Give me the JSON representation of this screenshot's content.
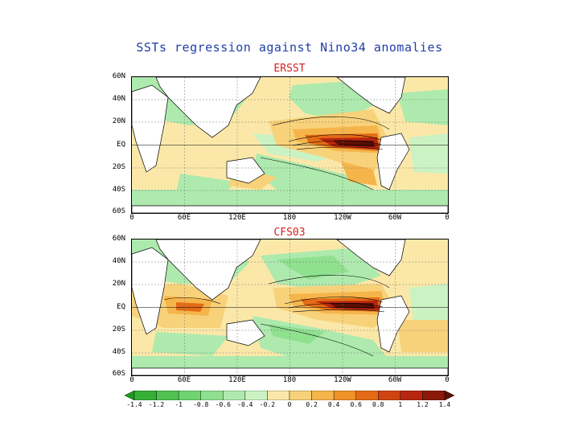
{
  "title": "SSTs regression against Nino34 anomalies",
  "panels": [
    {
      "title": "ERSST"
    },
    {
      "title": "CFS03"
    }
  ],
  "lat_labels": [
    "60N",
    "40N",
    "20N",
    "EQ",
    "20S",
    "40S",
    "60S"
  ],
  "lon_labels": [
    "0",
    "60E",
    "120E",
    "180",
    "120W",
    "60W",
    "0"
  ],
  "colorbar": {
    "labels": [
      "-1.4",
      "-1.2",
      "-1",
      "-0.8",
      "-0.6",
      "-0.4",
      "-0.2",
      "0",
      "0.2",
      "0.4",
      "0.6",
      "0.8",
      "1",
      "1.2",
      "1.4"
    ],
    "colors": [
      "#1e9a1e",
      "#35b035",
      "#4fc24f",
      "#6fd46f",
      "#8fe08f",
      "#aeeaae",
      "#cbf2c3",
      "#fbe8a8",
      "#f8d27a",
      "#f5b54a",
      "#ef9227",
      "#e36b15",
      "#cf4412",
      "#b8260f",
      "#8b1a0a",
      "#5a0f05"
    ]
  },
  "colors": {
    "title": "#1f3fa8",
    "panel_title": "#d61e1e",
    "land": "#ffffff",
    "warm": "#f5b54a",
    "cool": "#aeeaae"
  }
}
